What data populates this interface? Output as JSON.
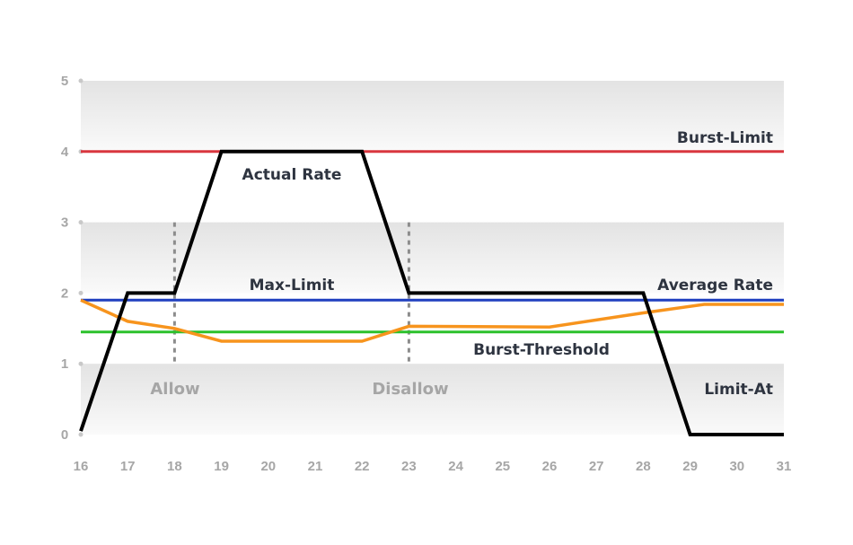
{
  "chart_data": {
    "type": "line",
    "title": "",
    "xlabel": "",
    "ylabel": "",
    "xlim": [
      16,
      31
    ],
    "ylim": [
      0,
      5
    ],
    "x_ticks": [
      16,
      17,
      18,
      19,
      20,
      21,
      22,
      23,
      24,
      25,
      26,
      27,
      28,
      29,
      30,
      31
    ],
    "y_ticks": [
      0,
      1,
      2,
      3,
      4,
      5
    ],
    "grid": "alternating horizontal bands",
    "series": [
      {
        "name": "Actual Rate",
        "color": "#000000",
        "points": [
          [
            16,
            0.05
          ],
          [
            17,
            2.0
          ],
          [
            18,
            2.0
          ],
          [
            19,
            4.0
          ],
          [
            22,
            4.0
          ],
          [
            23,
            2.0
          ],
          [
            28,
            2.0
          ],
          [
            29,
            0.0
          ],
          [
            31,
            0.0
          ]
        ]
      },
      {
        "name": "Average Rate",
        "color": "#f7941d",
        "points": [
          [
            16,
            1.9
          ],
          [
            17,
            1.6
          ],
          [
            18,
            1.5
          ],
          [
            19,
            1.32
          ],
          [
            22,
            1.32
          ],
          [
            23,
            1.53
          ],
          [
            26,
            1.52
          ],
          [
            28,
            1.72
          ],
          [
            29.3,
            1.84
          ],
          [
            31,
            1.84
          ]
        ]
      }
    ],
    "reference_lines": [
      {
        "name": "Burst-Limit",
        "y": 4.0,
        "color": "#d9363e"
      },
      {
        "name": "Max-Limit",
        "y": 1.9,
        "color": "#1f3fbf"
      },
      {
        "name": "Burst-Threshold",
        "y": 1.45,
        "color": "#2cc12c"
      }
    ],
    "vertical_markers": [
      {
        "x": 18,
        "label": "Allow"
      },
      {
        "x": 23,
        "label": "Disallow"
      }
    ],
    "annotations": {
      "limit_at": "Limit-At"
    }
  }
}
